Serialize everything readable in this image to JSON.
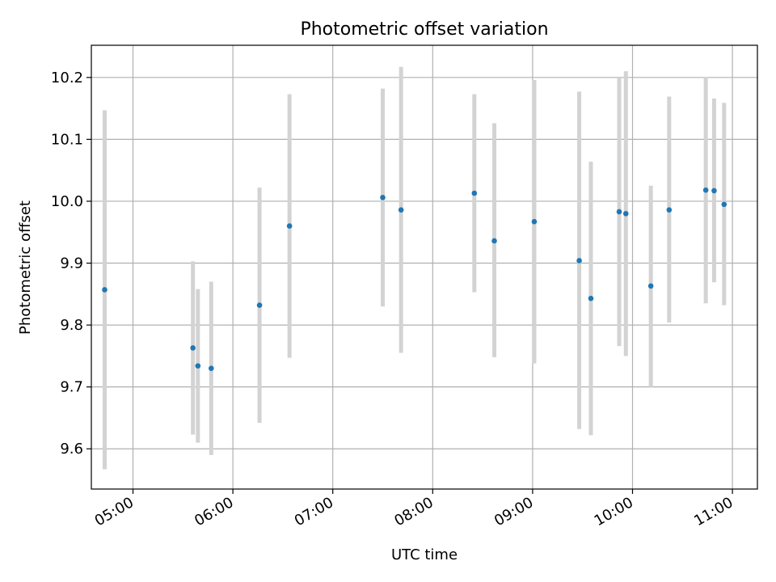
{
  "chart_data": {
    "type": "scatter",
    "title": "Photometric offset variation",
    "xlabel": "UTC time",
    "ylabel": "Photometric offset",
    "xlim": [
      "04:35",
      "11:15"
    ],
    "ylim": [
      9.535,
      10.252
    ],
    "xticks": [
      "05:00",
      "06:00",
      "07:00",
      "08:00",
      "09:00",
      "10:00",
      "11:00"
    ],
    "yticks": [
      9.6,
      9.7,
      9.8,
      9.9,
      10.0,
      10.1,
      10.2
    ],
    "grid": true,
    "series": [
      {
        "points": [
          {
            "x": "04:43",
            "y": 9.857,
            "ylow": 9.567,
            "yhigh": 10.147
          },
          {
            "x": "05:36",
            "y": 9.763,
            "ylow": 9.623,
            "yhigh": 9.903
          },
          {
            "x": "05:39",
            "y": 9.734,
            "ylow": 9.61,
            "yhigh": 9.858
          },
          {
            "x": "05:47",
            "y": 9.73,
            "ylow": 9.59,
            "yhigh": 9.87
          },
          {
            "x": "06:16",
            "y": 9.832,
            "ylow": 9.642,
            "yhigh": 10.022
          },
          {
            "x": "06:34",
            "y": 9.96,
            "ylow": 9.747,
            "yhigh": 10.173
          },
          {
            "x": "07:30",
            "y": 10.006,
            "ylow": 9.83,
            "yhigh": 10.182
          },
          {
            "x": "07:41",
            "y": 9.986,
            "ylow": 9.755,
            "yhigh": 10.217
          },
          {
            "x": "08:25",
            "y": 10.013,
            "ylow": 9.853,
            "yhigh": 10.173
          },
          {
            "x": "08:37",
            "y": 9.936,
            "ylow": 9.748,
            "yhigh": 10.126
          },
          {
            "x": "09:01",
            "y": 9.967,
            "ylow": 9.738,
            "yhigh": 10.196
          },
          {
            "x": "09:28",
            "y": 9.904,
            "ylow": 9.632,
            "yhigh": 10.177
          },
          {
            "x": "09:35",
            "y": 9.843,
            "ylow": 9.622,
            "yhigh": 10.064
          },
          {
            "x": "09:52",
            "y": 9.983,
            "ylow": 9.766,
            "yhigh": 10.2
          },
          {
            "x": "09:56",
            "y": 9.98,
            "ylow": 9.75,
            "yhigh": 10.21
          },
          {
            "x": "10:11",
            "y": 9.863,
            "ylow": 9.7,
            "yhigh": 10.025
          },
          {
            "x": "10:22",
            "y": 9.986,
            "ylow": 9.804,
            "yhigh": 10.169
          },
          {
            "x": "10:44",
            "y": 10.018,
            "ylow": 9.835,
            "yhigh": 10.201
          },
          {
            "x": "10:49",
            "y": 10.017,
            "ylow": 9.869,
            "yhigh": 10.166
          },
          {
            "x": "10:55",
            "y": 9.995,
            "ylow": 9.832,
            "yhigh": 10.159
          }
        ]
      }
    ],
    "colors": {
      "point": "#1f77b4",
      "errorbar": "#d3d3d3",
      "grid": "#b0b0b0",
      "axes": "#000000"
    }
  }
}
